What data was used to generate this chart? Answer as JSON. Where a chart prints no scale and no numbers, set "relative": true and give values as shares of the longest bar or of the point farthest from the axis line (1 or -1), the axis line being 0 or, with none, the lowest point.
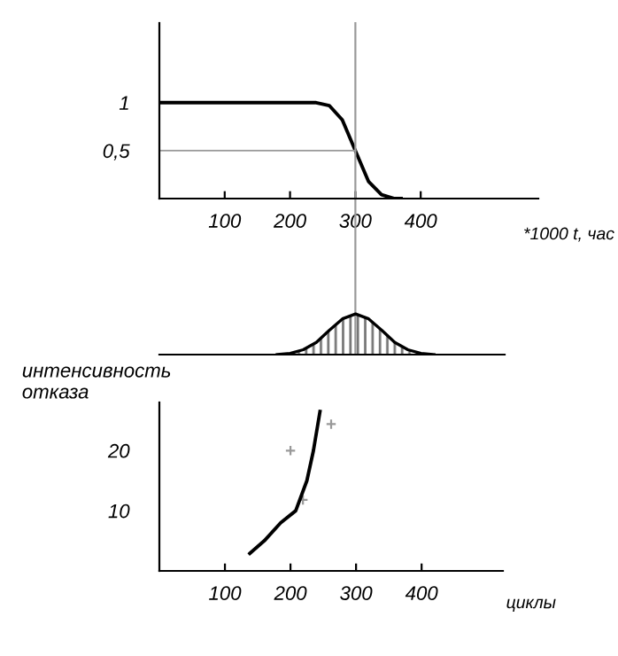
{
  "chart_data": [
    {
      "type": "line",
      "xlabel": "*1000 t, час",
      "xlim": [
        0,
        580
      ],
      "ylim": [
        0,
        1.83
      ],
      "xticks": [
        100,
        200,
        300,
        400
      ],
      "yticks": [
        {
          "value": 0.5,
          "label": "0,5"
        },
        1
      ],
      "grid": false,
      "legend": false,
      "series": [
        {
          "color": "#000000",
          "x": [
            0,
            240,
            260,
            280,
            300,
            320,
            340,
            360,
            370
          ],
          "values": [
            1,
            1,
            0.97,
            0.82,
            0.5,
            0.18,
            0.04,
            0,
            0
          ]
        }
      ],
      "ref_lines": [
        {
          "axis": "y",
          "value": 0.5,
          "color": "#999999"
        },
        {
          "axis": "x",
          "value": 300,
          "color": "#999999"
        }
      ]
    },
    {
      "type": "area",
      "relative": true,
      "categories": [
        null,
        null,
        null,
        null,
        null,
        null,
        null,
        null,
        null,
        null,
        null,
        null,
        null
      ],
      "legend": false,
      "series": [
        {
          "color": "#000000",
          "values": [
            0,
            0.03,
            0.12,
            0.3,
            0.6,
            0.88,
            1,
            0.88,
            0.6,
            0.3,
            0.12,
            0.03,
            0
          ]
        }
      ]
    },
    {
      "type": "line",
      "xlabel": "циклы",
      "ylabel": "интенсивность\nотказа",
      "xlim": [
        0,
        524
      ],
      "ylim": [
        0,
        28
      ],
      "xticks": [
        100,
        200,
        300,
        400
      ],
      "yticks": [
        10,
        20
      ],
      "grid": false,
      "legend": false,
      "series": [
        {
          "color": "#000000",
          "x": [
            138,
            160,
            185,
            208,
            225,
            235,
            245
          ],
          "values": [
            2.9,
            5,
            8,
            10,
            15,
            20,
            26.5
          ]
        },
        {
          "type": "scatter",
          "color": "#999999",
          "marker": "cross",
          "x": [
            200,
            219,
            262
          ],
          "values": [
            20,
            11.8,
            24.4
          ]
        }
      ]
    }
  ]
}
